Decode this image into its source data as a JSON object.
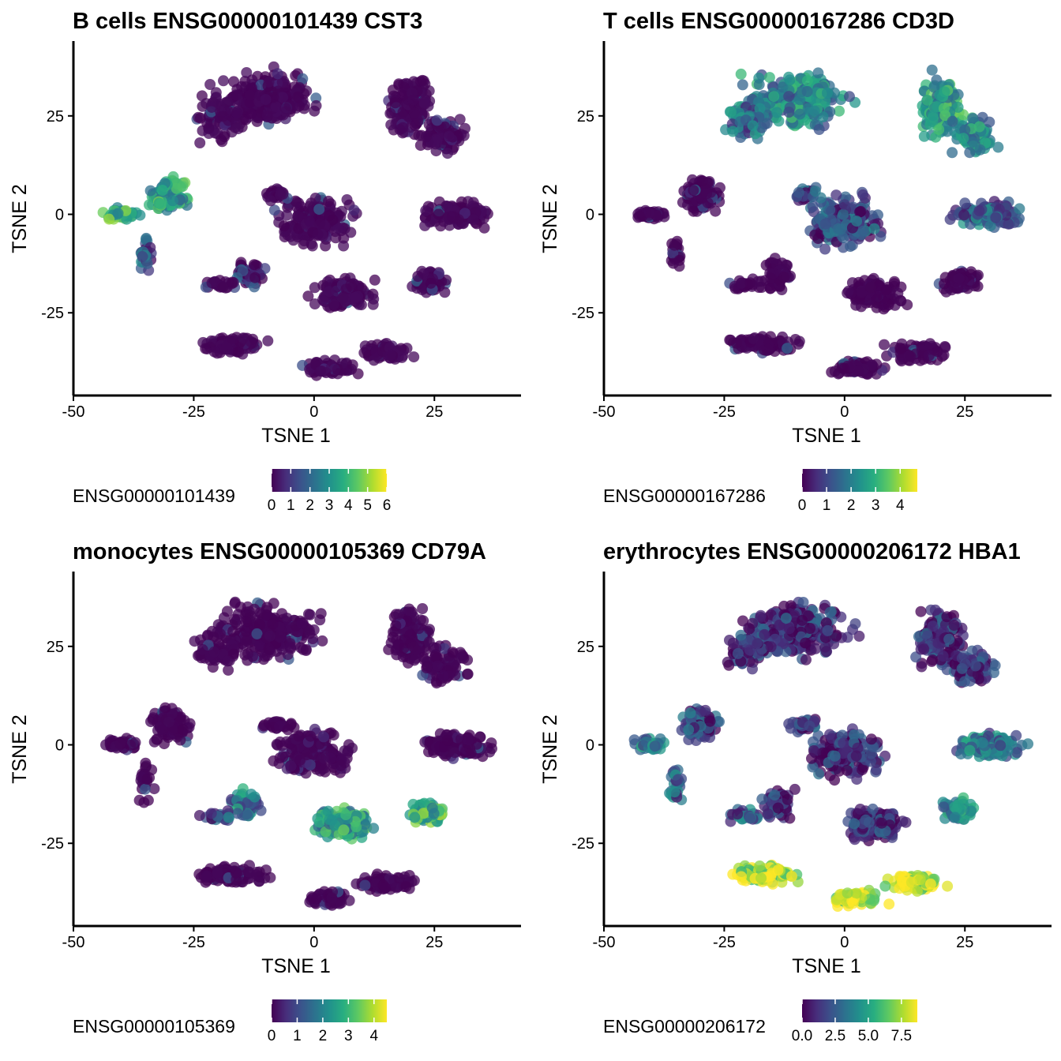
{
  "chart_data": [
    {
      "type": "scatter",
      "title": "B cells ENSG00000101439 CST3",
      "xlabel": "TSNE 1",
      "ylabel": "TSNE 2",
      "xlim": [
        -50,
        43
      ],
      "ylim": [
        -46,
        44
      ],
      "xticks": [
        -50,
        -25,
        0,
        25
      ],
      "xtick_labels": [
        "-50",
        "-25",
        "0",
        "25"
      ],
      "yticks": [
        -25,
        0,
        25
      ],
      "ytick_labels": [
        "-25",
        "0",
        "25"
      ],
      "colorbar": {
        "title": "ENSG00000101439",
        "min": 0,
        "max": 6,
        "ticks": [
          0,
          1,
          2,
          3,
          4,
          5,
          6
        ],
        "tick_labels": [
          "0",
          "1",
          "2",
          "3",
          "4",
          "5",
          "6"
        ]
      },
      "colormap": "viridis",
      "points_sample": [
        {
          "x": -40,
          "y": 0,
          "v": 3.5
        },
        {
          "x": -33,
          "y": 8,
          "v": 3.2
        },
        {
          "x": -28,
          "y": 6,
          "v": 3.0
        },
        {
          "x": -22,
          "y": 4,
          "v": 5.0
        },
        {
          "x": -10,
          "y": 28,
          "v": 0.1
        },
        {
          "x": 20,
          "y": 25,
          "v": 0.2
        },
        {
          "x": 0,
          "y": -2,
          "v": 0.2
        },
        {
          "x": 30,
          "y": 0,
          "v": 0.1
        },
        {
          "x": 5,
          "y": -20,
          "v": 0.4
        },
        {
          "x": 10,
          "y": -38,
          "v": 0.1
        }
      ]
    },
    {
      "type": "scatter",
      "title": "T cells ENSG00000167286 CD3D",
      "xlabel": "TSNE 1",
      "ylabel": "TSNE 2",
      "xlim": [
        -50,
        43
      ],
      "ylim": [
        -46,
        44
      ],
      "xticks": [
        -50,
        -25,
        0,
        25
      ],
      "xtick_labels": [
        "-50",
        "-25",
        "0",
        "25"
      ],
      "yticks": [
        -25,
        0,
        25
      ],
      "ytick_labels": [
        "-25",
        "0",
        "25"
      ],
      "colorbar": {
        "title": "ENSG00000167286",
        "min": 0,
        "max": 4.7,
        "ticks": [
          0,
          1,
          2,
          3,
          4
        ],
        "tick_labels": [
          "0",
          "1",
          "2",
          "3",
          "4"
        ]
      },
      "colormap": "viridis",
      "points_sample": [
        {
          "x": -10,
          "y": 28,
          "v": 2.5
        },
        {
          "x": 20,
          "y": 25,
          "v": 2.8
        },
        {
          "x": 0,
          "y": -2,
          "v": 1.2
        },
        {
          "x": 30,
          "y": 0,
          "v": 1.8
        },
        {
          "x": -30,
          "y": 5,
          "v": 0.1
        },
        {
          "x": 5,
          "y": -20,
          "v": 0.1
        }
      ]
    },
    {
      "type": "scatter",
      "title": "monocytes ENSG00000105369 CD79A",
      "xlabel": "TSNE 1",
      "ylabel": "TSNE 2",
      "xlim": [
        -50,
        43
      ],
      "ylim": [
        -46,
        44
      ],
      "xticks": [
        -50,
        -25,
        0,
        25
      ],
      "xtick_labels": [
        "-50",
        "-25",
        "0",
        "25"
      ],
      "yticks": [
        -25,
        0,
        25
      ],
      "ytick_labels": [
        "-25",
        "0",
        "25"
      ],
      "colorbar": {
        "title": "ENSG00000105369",
        "min": 0,
        "max": 4.5,
        "ticks": [
          0,
          1,
          2,
          3,
          4
        ],
        "tick_labels": [
          "0",
          "1",
          "2",
          "3",
          "4"
        ]
      },
      "colormap": "viridis",
      "points_sample": [
        {
          "x": -15,
          "y": -18,
          "v": 2.0
        },
        {
          "x": 8,
          "y": -18,
          "v": 3.0
        },
        {
          "x": 25,
          "y": -17,
          "v": 3.5
        },
        {
          "x": -10,
          "y": 28,
          "v": 0.1
        },
        {
          "x": 0,
          "y": -2,
          "v": 0.1
        }
      ]
    },
    {
      "type": "scatter",
      "title": "erythrocytes ENSG00000206172 HBA1",
      "xlabel": "TSNE 1",
      "ylabel": "TSNE 2",
      "xlim": [
        -50,
        43
      ],
      "ylim": [
        -46,
        44
      ],
      "xticks": [
        -50,
        -25,
        0,
        25
      ],
      "xtick_labels": [
        "-50",
        "-25",
        "0",
        "25"
      ],
      "yticks": [
        -25,
        0,
        25
      ],
      "ytick_labels": [
        "-25",
        "0",
        "25"
      ],
      "colorbar": {
        "title": "ENSG00000206172",
        "min": 0,
        "max": 8.7,
        "ticks": [
          0,
          2.5,
          5,
          7.5
        ],
        "tick_labels": [
          "0.0",
          "2.5",
          "5.0",
          "7.5"
        ]
      },
      "colormap": "viridis",
      "points_sample": [
        {
          "x": -18,
          "y": -30,
          "v": 8.0
        },
        {
          "x": 3,
          "y": -35,
          "v": 8.2
        },
        {
          "x": 15,
          "y": -30,
          "v": 8.4
        },
        {
          "x": -40,
          "y": 0,
          "v": 3.5
        },
        {
          "x": 25,
          "y": -10,
          "v": 3.8
        },
        {
          "x": -10,
          "y": 28,
          "v": 0.3
        }
      ]
    }
  ]
}
